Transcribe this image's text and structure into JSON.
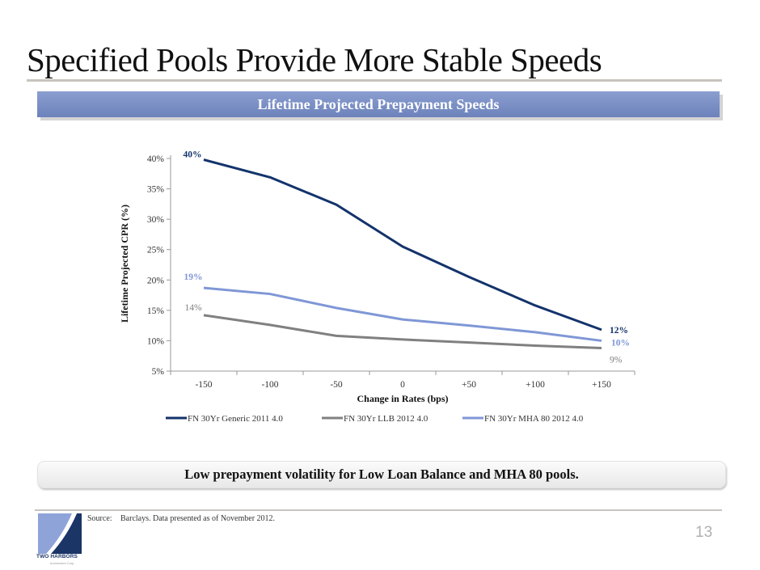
{
  "slide": {
    "title": "Specified Pools Provide More Stable Speeds",
    "banner": "Lifetime Projected Prepayment Speeds",
    "callout": "Low prepayment volatility for Low Loan Balance and MHA 80 pools.",
    "source_label": "Source:",
    "source_text": "Barclays. Data presented as of November 2012.",
    "page_number": "13",
    "logo_name": "TWO HARBORS",
    "logo_sub": "Investment Corp."
  },
  "chart_data": {
    "type": "line",
    "title": "Lifetime Projected Prepayment Speeds",
    "xlabel": "Change in Rates (bps)",
    "ylabel": "Lifetime Projected CPR (%)",
    "categories": [
      "-150",
      "-100",
      "-50",
      "0",
      "+50",
      "+100",
      "+150"
    ],
    "ylim": [
      5,
      40
    ],
    "yticks": [
      5,
      10,
      15,
      20,
      25,
      30,
      35,
      40
    ],
    "ytick_labels": [
      "5%",
      "10%",
      "15%",
      "20%",
      "25%",
      "30%",
      "35%",
      "40%"
    ],
    "grid": false,
    "legend_position": "bottom",
    "series": [
      {
        "name": "FN 30Yr Generic 2011 4.0",
        "color": "#13336b",
        "values": [
          39.8,
          36.9,
          32.4,
          25.5,
          20.5,
          15.8,
          11.8
        ],
        "start_label": "40%",
        "end_label": "12%"
      },
      {
        "name": "FN 30Yr LLB 2012 4.0",
        "color": "#808080",
        "values": [
          14.2,
          12.6,
          10.8,
          10.2,
          9.7,
          9.2,
          8.8
        ],
        "start_label": "14%",
        "end_label": "9%"
      },
      {
        "name": "FN 30Yr MHA 80 2012 4.0",
        "color": "#7f97d6",
        "values": [
          18.7,
          17.7,
          15.4,
          13.5,
          12.5,
          11.4,
          10.0
        ],
        "start_label": "19%",
        "end_label": "10%"
      }
    ]
  }
}
